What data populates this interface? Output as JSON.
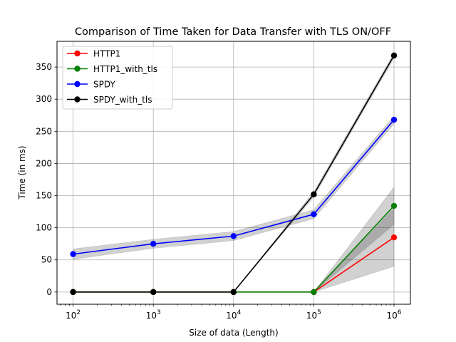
{
  "chart_data": {
    "type": "line",
    "title": "Comparison of Time Taken for Data Transfer with TLS ON/OFF",
    "xlabel": "Size of data (Length)",
    "ylabel": "Time (in ms)",
    "xscale": "log",
    "xlim": [
      63,
      1600000
    ],
    "ylim": [
      -19,
      390
    ],
    "grid": true,
    "legend_position": "top-left",
    "x": [
      100,
      1000,
      10000,
      100000,
      1000000
    ],
    "x_tick_labels": [
      {
        "base": "10",
        "exp": "2",
        "value": 100
      },
      {
        "base": "10",
        "exp": "3",
        "value": 1000
      },
      {
        "base": "10",
        "exp": "4",
        "value": 10000
      },
      {
        "base": "10",
        "exp": "5",
        "value": 100000
      },
      {
        "base": "10",
        "exp": "6",
        "value": 1000000
      }
    ],
    "y_ticks": [
      0,
      50,
      100,
      150,
      200,
      250,
      300,
      350
    ],
    "series": [
      {
        "name": "HTTP1",
        "color": "#ff0000",
        "values": [
          0,
          0,
          0,
          0,
          85
        ],
        "lower": [
          0,
          0,
          0,
          0,
          40
        ],
        "upper": [
          0,
          0,
          0,
          0,
          130
        ]
      },
      {
        "name": "HTTP1_with_tls",
        "color": "#008000",
        "values": [
          0,
          0,
          0,
          0,
          134
        ],
        "lower": [
          0,
          0,
          0,
          0,
          105
        ],
        "upper": [
          0,
          0,
          0,
          0,
          163
        ]
      },
      {
        "name": "SPDY",
        "color": "#0000ff",
        "values": [
          59,
          75,
          87,
          121,
          268
        ],
        "lower": [
          51,
          68,
          80,
          114,
          262
        ],
        "upper": [
          67,
          82,
          94,
          128,
          274
        ]
      },
      {
        "name": "SPDY_with_tls",
        "color": "#000000",
        "values": [
          0,
          0,
          0,
          152,
          368
        ],
        "lower": [
          0,
          0,
          0,
          148,
          364
        ],
        "upper": [
          0,
          0,
          0,
          156,
          372
        ]
      }
    ]
  }
}
